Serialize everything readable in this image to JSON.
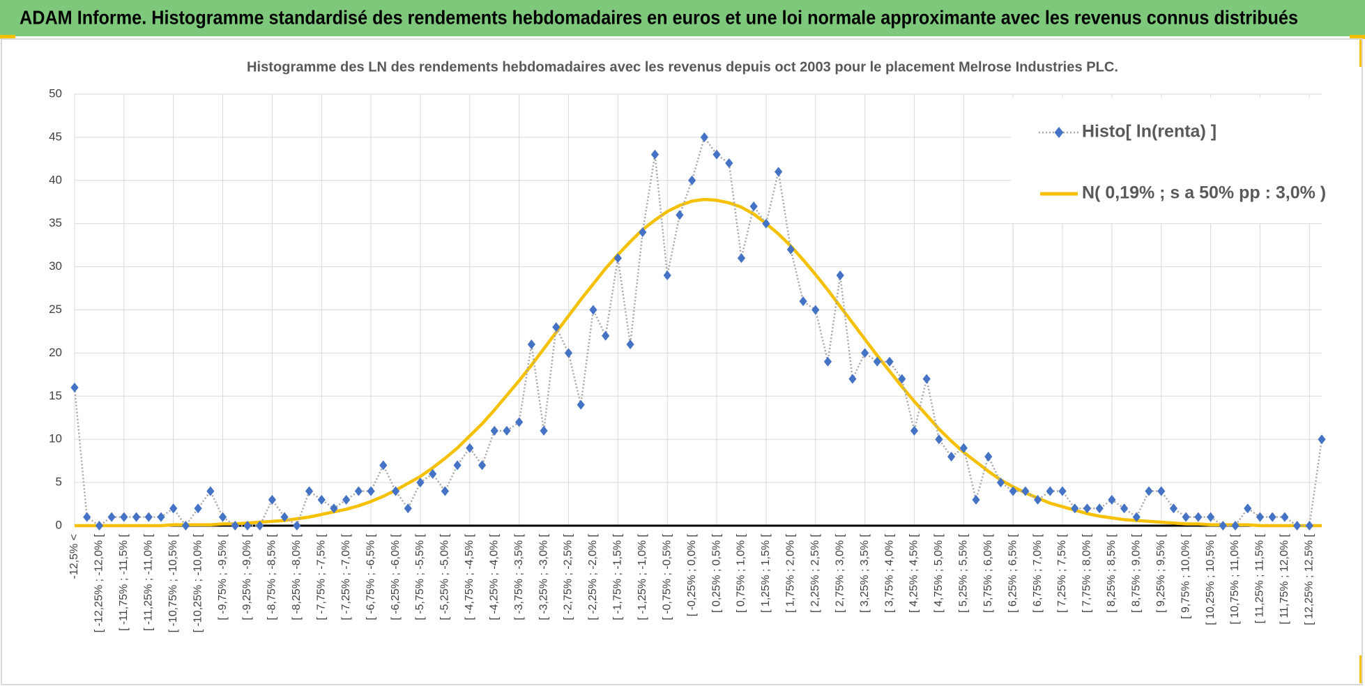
{
  "header": {
    "title": "ADAM Informe. Histogramme standardisé des rendements hebdomadaires en euros et une loi normale approximante avec les revenus connus distribués"
  },
  "chart_data": {
    "type": "line",
    "title": "Histogramme des LN des rendements hebdomadaires avec les revenus depuis oct 2003 pour le placement Melrose Industries PLC.",
    "categories": [
      "-12,5% <",
      null,
      "[ -12,25% ; -12,0% [",
      null,
      "[ -11,75% ; -11,5% [",
      null,
      "[ -11,25% ; -11,0% [",
      null,
      "[ -10,75% ; -10,5% [",
      null,
      "[ -10,25% ; -10,0% [",
      null,
      "[ -9,75% ; -9,5% [",
      null,
      "[ -9,25% ; -9,0% [",
      null,
      "[ -8,75% ; -8,5% [",
      null,
      "[ -8,25% ; -8,0% [",
      null,
      "[ -7,75% ; -7,5% [",
      null,
      "[ -7,25% ; -7,0% [",
      null,
      "[ -6,75% ; -6,5% [",
      null,
      "[ -6,25% ; -6,0% [",
      null,
      "[ -5,75% ; -5,5% [",
      null,
      "[ -5,25% ; -5,0% [",
      null,
      "[ -4,75% ; -4,5% [",
      null,
      "[ -4,25% ; -4,0% [",
      null,
      "[ -3,75% ; -3,5% [",
      null,
      "[ -3,25% ; -3,0% [",
      null,
      "[ -2,75% ; -2,5% [",
      null,
      "[ -2,25% ; -2,0% [",
      null,
      "[ -1,75% ; -1,5% [",
      null,
      "[ -1,25% ; -1,0% [",
      null,
      "[ -0,75% ; -0,5% [",
      null,
      "[ -0,25% ; 0,0% [",
      null,
      "[ 0,25% ; 0,5% [",
      null,
      "[ 0,75% ; 1,0% [",
      null,
      "[ 1,25% ; 1,5% [",
      null,
      "[ 1,75% ; 2,0% [",
      null,
      "[ 2,25% ; 2,5% [",
      null,
      "[ 2,75% ; 3,0% [",
      null,
      "[ 3,25% ; 3,5% [",
      null,
      "[ 3,75% ; 4,0% [",
      null,
      "[ 4,25% ; 4,5% [",
      null,
      "[ 4,75% ; 5,0% [",
      null,
      "[ 5,25% ; 5,5% [",
      null,
      "[ 5,75% ; 6,0% [",
      null,
      "[ 6,25% ; 6,5% [",
      null,
      "[ 6,75% ; 7,0% [",
      null,
      "[ 7,25% ; 7,5% [",
      null,
      "[ 7,75% ; 8,0% [",
      null,
      "[ 8,25% ; 8,5% [",
      null,
      "[ 8,75% ; 9,0% [",
      null,
      "[ 9,25% ; 9,5% [",
      null,
      "[ 9,75% ; 10,0% [",
      null,
      "[ 10,25% ; 10,5% [",
      null,
      "[ 10,75% ; 11,0% [",
      null,
      "[ 11,25% ; 11,5% [",
      null,
      "[ 11,75% ; 12,0% [",
      null,
      "[ 12,25% ; 12,5% [",
      null
    ],
    "series": [
      {
        "name": "Histo[ ln(renta) ]",
        "color": "#4472c4",
        "line_color": "#a6a6a6",
        "style": "markers-dotted",
        "values": [
          16,
          1,
          0,
          1,
          1,
          1,
          1,
          1,
          2,
          0,
          2,
          4,
          1,
          0,
          0,
          0,
          3,
          1,
          0,
          4,
          3,
          2,
          3,
          4,
          4,
          7,
          4,
          2,
          5,
          6,
          4,
          7,
          9,
          7,
          11,
          11,
          12,
          21,
          11,
          23,
          20,
          14,
          25,
          22,
          31,
          21,
          34,
          43,
          29,
          36,
          40,
          45,
          43,
          42,
          31,
          37,
          35,
          41,
          32,
          26,
          25,
          19,
          29,
          17,
          20,
          19,
          19,
          17,
          11,
          17,
          10,
          8,
          9,
          3,
          8,
          5,
          4,
          4,
          3,
          4,
          4,
          2,
          2,
          2,
          3,
          2,
          1,
          4,
          4,
          2,
          1,
          1,
          1,
          0,
          0,
          2,
          1,
          1,
          1,
          0,
          0,
          10
        ]
      },
      {
        "name": "N( 0,19% ; s a 50% pp : 3,0% )",
        "color": "#f5c000",
        "style": "line",
        "values": [
          0,
          0,
          0,
          0,
          0,
          0,
          0,
          0,
          0.1,
          0.1,
          0.1,
          0.1,
          0.2,
          0.2,
          0.3,
          0.4,
          0.5,
          0.6,
          0.8,
          1.0,
          1.3,
          1.6,
          1.9,
          2.3,
          2.8,
          3.4,
          4.1,
          4.9,
          5.7,
          6.7,
          7.8,
          9.0,
          10.4,
          11.8,
          13.4,
          15.1,
          16.8,
          18.6,
          20.5,
          22.4,
          24.3,
          26.2,
          28.0,
          29.8,
          31.4,
          32.9,
          34.3,
          35.4,
          36.4,
          37.1,
          37.6,
          37.8,
          37.7,
          37.4,
          36.9,
          36.1,
          35.0,
          33.8,
          32.4,
          30.8,
          29.1,
          27.3,
          25.4,
          23.5,
          21.6,
          19.7,
          17.9,
          16.1,
          14.4,
          12.8,
          11.2,
          9.8,
          8.5,
          7.4,
          6.3,
          5.3,
          4.5,
          3.8,
          3.2,
          2.6,
          2.2,
          1.8,
          1.4,
          1.1,
          0.9,
          0.7,
          0.6,
          0.5,
          0.4,
          0.3,
          0.2,
          0.2,
          0.1,
          0.1,
          0.1,
          0.1,
          0,
          0,
          0,
          0,
          0,
          0
        ]
      }
    ],
    "ylim": [
      0,
      50
    ],
    "yticks": [
      0,
      5,
      10,
      15,
      20,
      25,
      30,
      35,
      40,
      45,
      50
    ],
    "grid": true,
    "legend": "top-right"
  }
}
